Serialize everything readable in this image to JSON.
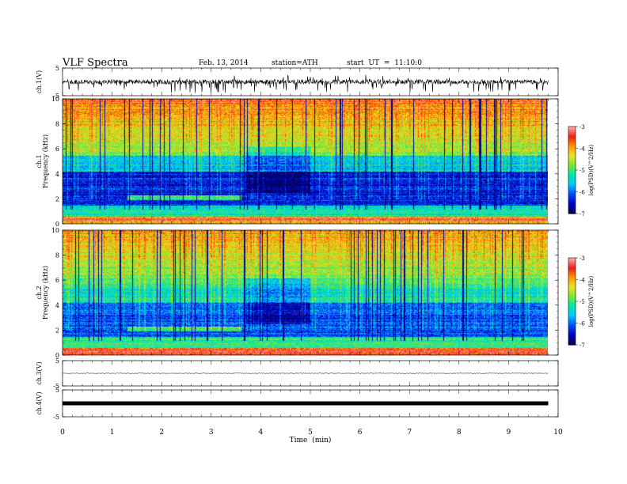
{
  "header": {
    "title": "VLF Spectra",
    "date": "Feb. 13, 2014",
    "station": "station=ATH",
    "start": "start UT = 11:10:0"
  },
  "chart_data": [
    {
      "type": "line",
      "panel": "ch1-waveform",
      "ylabel": "ch.1(V)",
      "ylim": [
        -5,
        5
      ],
      "yticks": [
        "5",
        "-5"
      ],
      "note": "noisy waveform around 0 V with frequent negative spikes"
    },
    {
      "type": "heatmap",
      "panel": "ch1-spectrogram",
      "ylabel_line1": "ch.1",
      "ylabel_line2": "Frequency (kHz)",
      "ylim": [
        0,
        10
      ],
      "yticks": [
        "0",
        "2",
        "4",
        "6",
        "8",
        "10"
      ],
      "colorbar": {
        "label": "log(PSD)(V^2/Hz)",
        "ticks": [
          "-3",
          "-4",
          "-5",
          "-6",
          "-7"
        ],
        "range": [
          -7,
          -3
        ]
      }
    },
    {
      "type": "heatmap",
      "panel": "ch2-spectrogram",
      "ylabel_line1": "ch.2",
      "ylabel_line2": "Frequency (kHz)",
      "ylim": [
        0,
        10
      ],
      "yticks": [
        "0",
        "2",
        "4",
        "6",
        "8",
        "10"
      ],
      "colorbar": {
        "label": "log(PSD)(V^2/Hz)",
        "ticks": [
          "-3",
          "-4",
          "-5",
          "-6",
          "-7"
        ],
        "range": [
          -7,
          -3
        ]
      }
    },
    {
      "type": "line",
      "panel": "ch3-waveform",
      "ylabel": "ch.3(V)",
      "ylim": [
        -5,
        5
      ],
      "yticks": [
        "5",
        "-5"
      ],
      "note": "flat line near 0 V"
    },
    {
      "type": "line",
      "panel": "ch4-waveform",
      "ylabel": "ch.4(V)",
      "ylim": [
        -5,
        5
      ],
      "yticks": [
        "5",
        "-5"
      ],
      "note": "thick flat band near 0 V"
    }
  ],
  "xaxis": {
    "label": "Time (min)",
    "ticks": [
      "0",
      "1",
      "2",
      "3",
      "4",
      "5",
      "6",
      "7",
      "8",
      "9",
      "10"
    ],
    "range": [
      0,
      10
    ],
    "data_end": 9.8
  },
  "colors": {
    "colormap": [
      "#00005a",
      "#0000c8",
      "#0050ff",
      "#00c8ff",
      "#00e6aa",
      "#7ae632",
      "#e6e628",
      "#ff9600",
      "#f01e14",
      "#ffaaaa"
    ]
  }
}
